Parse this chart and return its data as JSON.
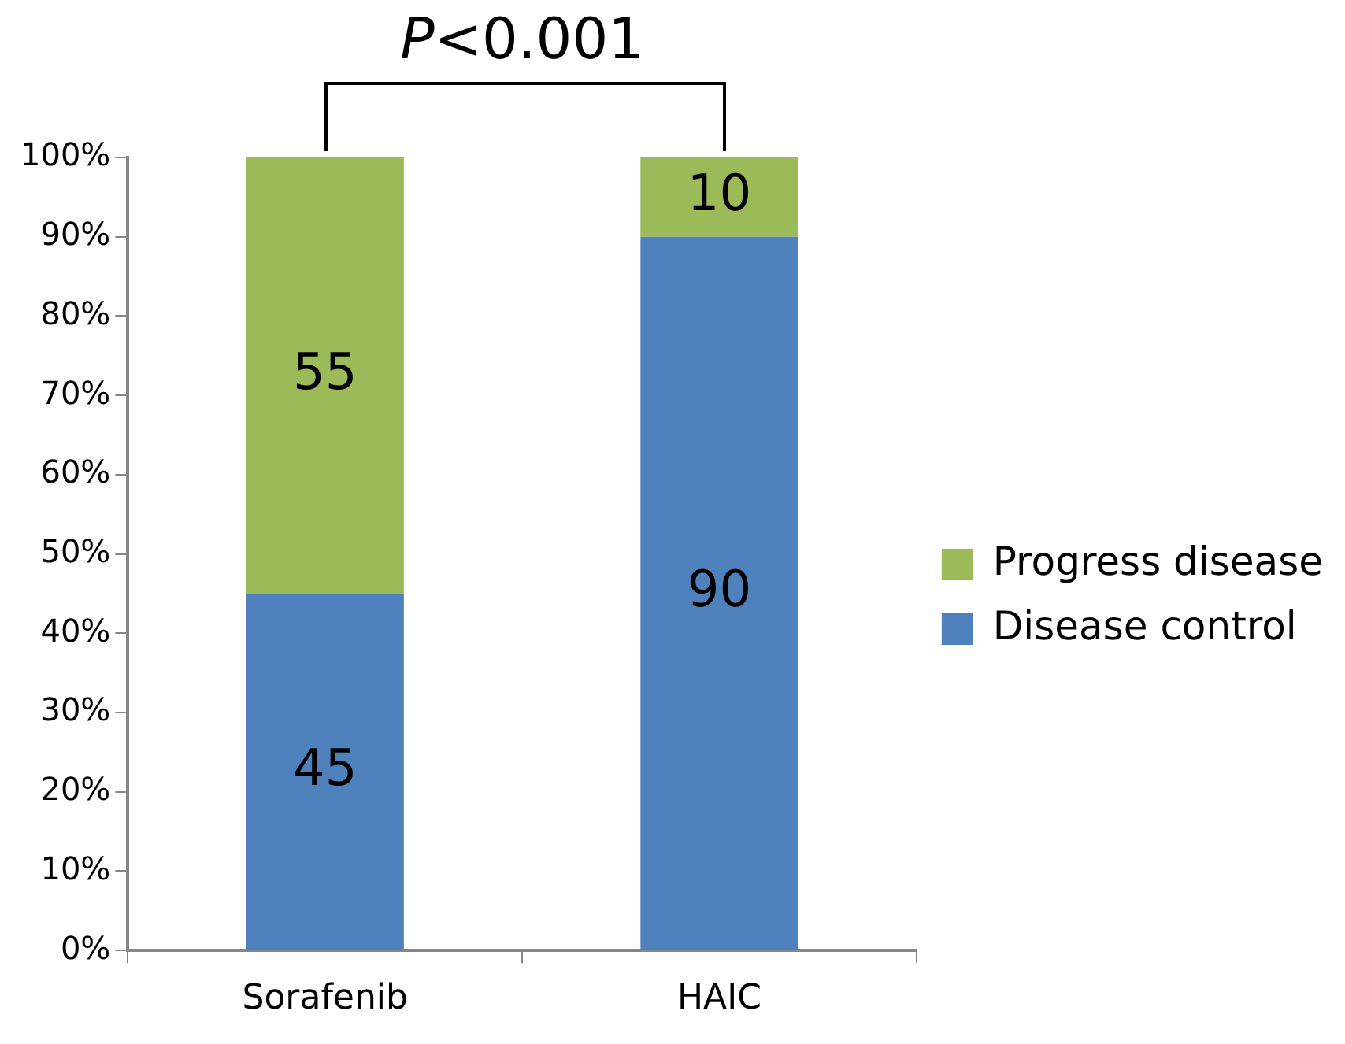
{
  "chart_data": {
    "type": "bar",
    "stacked": true,
    "categories": [
      "Sorafenib",
      "HAIC"
    ],
    "series": [
      {
        "name": "Disease control",
        "color": "#4f81bd",
        "values": [
          45,
          90
        ]
      },
      {
        "name": "Progress disease",
        "color": "#9bbb59",
        "values": [
          55,
          10
        ]
      }
    ],
    "ylim": [
      0,
      100
    ],
    "yticks": [
      {
        "value": 0,
        "label": "0%"
      },
      {
        "value": 10,
        "label": "10%"
      },
      {
        "value": 20,
        "label": "20%"
      },
      {
        "value": 30,
        "label": "30%"
      },
      {
        "value": 40,
        "label": "40%"
      },
      {
        "value": 50,
        "label": "50%"
      },
      {
        "value": 60,
        "label": "60%"
      },
      {
        "value": 70,
        "label": "70%"
      },
      {
        "value": 80,
        "label": "80%"
      },
      {
        "value": 90,
        "label": "90%"
      },
      {
        "value": 100,
        "label": "100%"
      }
    ],
    "grid": false,
    "legend": "right",
    "data_labels": true,
    "annotations": [
      "P<0.001"
    ]
  }
}
